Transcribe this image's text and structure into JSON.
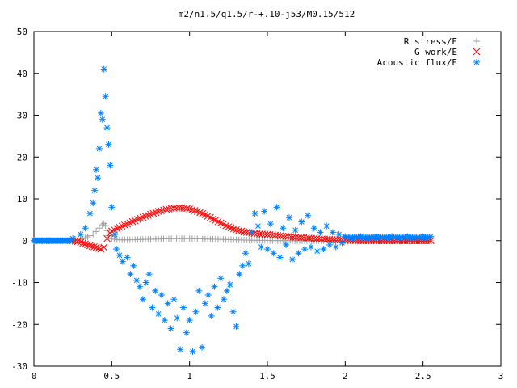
{
  "chart_data": {
    "type": "scatter",
    "title": "m2/n1.5/q1.5/r-+.10-j53/M0.15/512",
    "xlabel": "",
    "ylabel": "",
    "xlim": [
      0,
      3
    ],
    "ylim": [
      -30,
      50
    ],
    "x_ticks": [
      0,
      0.5,
      1,
      1.5,
      2,
      2.5,
      3
    ],
    "x_tick_labels": [
      "0",
      "0.5",
      "1",
      "1.5",
      "2",
      "2.5",
      "3"
    ],
    "y_ticks": [
      -30,
      -20,
      -10,
      0,
      10,
      20,
      30,
      40,
      50
    ],
    "y_tick_labels": [
      "-30",
      "-20",
      "-10",
      "0",
      "10",
      "20",
      "30",
      "40",
      "50"
    ],
    "grid": false,
    "legend_position": "top-right",
    "series": [
      {
        "name": "R stress/E",
        "marker": "plus",
        "color": "#a0a0a0",
        "points": [
          [
            0,
            0
          ],
          [
            0.1,
            0
          ],
          [
            0.2,
            0
          ],
          [
            0.25,
            0
          ],
          [
            0.28,
            0.05
          ],
          [
            0.3,
            0.2
          ],
          [
            0.33,
            0.6
          ],
          [
            0.36,
            1.2
          ],
          [
            0.38,
            1.6
          ],
          [
            0.4,
            2.2
          ],
          [
            0.42,
            3.0
          ],
          [
            0.44,
            3.8
          ],
          [
            0.45,
            4.1
          ],
          [
            0.46,
            3.6
          ],
          [
            0.47,
            2.4
          ],
          [
            0.48,
            1.2
          ],
          [
            0.5,
            0.4
          ],
          [
            0.55,
            0.2
          ],
          [
            0.6,
            0.2
          ],
          [
            0.7,
            0.3
          ],
          [
            0.8,
            0.4
          ],
          [
            0.9,
            0.5
          ],
          [
            1.0,
            0.5
          ],
          [
            1.1,
            0.4
          ],
          [
            1.2,
            0.3
          ],
          [
            1.3,
            0.2
          ],
          [
            1.4,
            0.1
          ],
          [
            1.5,
            0.05
          ],
          [
            1.6,
            0
          ],
          [
            1.8,
            0
          ],
          [
            2.0,
            0
          ],
          [
            2.2,
            0
          ],
          [
            2.4,
            0
          ],
          [
            2.55,
            0
          ]
        ]
      },
      {
        "name": "G work/E",
        "marker": "cross",
        "color": "#ff0000",
        "points": [
          [
            0.25,
            0
          ],
          [
            0.28,
            -0.2
          ],
          [
            0.3,
            -0.4
          ],
          [
            0.33,
            -0.8
          ],
          [
            0.36,
            -1.2
          ],
          [
            0.4,
            -1.6
          ],
          [
            0.43,
            -2.0
          ],
          [
            0.45,
            -1.6
          ],
          [
            0.47,
            0.5
          ],
          [
            0.49,
            1.8
          ],
          [
            0.5,
            2.3
          ],
          [
            0.55,
            3.2
          ],
          [
            0.6,
            4.0
          ],
          [
            0.65,
            4.8
          ],
          [
            0.7,
            5.6
          ],
          [
            0.75,
            6.3
          ],
          [
            0.8,
            7.0
          ],
          [
            0.85,
            7.5
          ],
          [
            0.9,
            7.8
          ],
          [
            0.95,
            7.9
          ],
          [
            1.0,
            7.6
          ],
          [
            1.05,
            7.0
          ],
          [
            1.1,
            6.2
          ],
          [
            1.15,
            5.2
          ],
          [
            1.2,
            4.2
          ],
          [
            1.25,
            3.3
          ],
          [
            1.3,
            2.6
          ],
          [
            1.35,
            2.1
          ],
          [
            1.4,
            1.8
          ],
          [
            1.45,
            1.6
          ],
          [
            1.5,
            1.5
          ],
          [
            1.55,
            1.3
          ],
          [
            1.6,
            1.1
          ],
          [
            1.7,
            0.8
          ],
          [
            1.8,
            0.5
          ],
          [
            1.9,
            0.3
          ],
          [
            2.0,
            0.1
          ],
          [
            2.1,
            0
          ],
          [
            2.2,
            0
          ],
          [
            2.3,
            0
          ],
          [
            2.4,
            0
          ],
          [
            2.55,
            0
          ]
        ]
      },
      {
        "name": "Acoustic flux/E",
        "marker": "star",
        "color": "#0080ff",
        "points": [
          [
            0,
            0
          ],
          [
            0.05,
            0
          ],
          [
            0.1,
            0
          ],
          [
            0.15,
            0
          ],
          [
            0.2,
            0
          ],
          [
            0.25,
            0.5
          ],
          [
            0.3,
            1.5
          ],
          [
            0.33,
            3.0
          ],
          [
            0.36,
            6.5
          ],
          [
            0.38,
            9.0
          ],
          [
            0.39,
            12.0
          ],
          [
            0.4,
            17.0
          ],
          [
            0.41,
            15.0
          ],
          [
            0.42,
            22.0
          ],
          [
            0.43,
            30.5
          ],
          [
            0.44,
            29.0
          ],
          [
            0.45,
            41.0
          ],
          [
            0.46,
            34.5
          ],
          [
            0.47,
            27.0
          ],
          [
            0.48,
            23.0
          ],
          [
            0.49,
            18.0
          ],
          [
            0.5,
            8.0
          ],
          [
            0.52,
            1.5
          ],
          [
            0.53,
            -2.0
          ],
          [
            0.55,
            -3.5
          ],
          [
            0.57,
            -5.0
          ],
          [
            0.6,
            -4.0
          ],
          [
            0.62,
            -8.0
          ],
          [
            0.64,
            -6.0
          ],
          [
            0.66,
            -9.5
          ],
          [
            0.68,
            -11.0
          ],
          [
            0.7,
            -14.0
          ],
          [
            0.72,
            -10.0
          ],
          [
            0.74,
            -8.0
          ],
          [
            0.76,
            -16.0
          ],
          [
            0.78,
            -12.0
          ],
          [
            0.8,
            -17.5
          ],
          [
            0.82,
            -13.0
          ],
          [
            0.84,
            -19.0
          ],
          [
            0.86,
            -15.0
          ],
          [
            0.88,
            -21.0
          ],
          [
            0.9,
            -14.0
          ],
          [
            0.92,
            -18.5
          ],
          [
            0.94,
            -26.0
          ],
          [
            0.96,
            -16.0
          ],
          [
            0.98,
            -22.0
          ],
          [
            1.0,
            -19.0
          ],
          [
            1.02,
            -26.5
          ],
          [
            1.04,
            -17.0
          ],
          [
            1.06,
            -12.0
          ],
          [
            1.08,
            -25.5
          ],
          [
            1.1,
            -15.0
          ],
          [
            1.12,
            -13.0
          ],
          [
            1.14,
            -18.0
          ],
          [
            1.16,
            -11.0
          ],
          [
            1.18,
            -16.0
          ],
          [
            1.2,
            -9.0
          ],
          [
            1.22,
            -14.0
          ],
          [
            1.24,
            -12.0
          ],
          [
            1.26,
            -10.5
          ],
          [
            1.28,
            -17.0
          ],
          [
            1.3,
            -20.5
          ],
          [
            1.32,
            -8.0
          ],
          [
            1.34,
            -6.0
          ],
          [
            1.36,
            -3.0
          ],
          [
            1.38,
            -5.5
          ],
          [
            1.4,
            2.0
          ],
          [
            1.42,
            6.5
          ],
          [
            1.44,
            3.5
          ],
          [
            1.46,
            -1.5
          ],
          [
            1.48,
            7.0
          ],
          [
            1.5,
            -2.0
          ],
          [
            1.52,
            4.0
          ],
          [
            1.54,
            -3.0
          ],
          [
            1.56,
            8.0
          ],
          [
            1.58,
            -4.0
          ],
          [
            1.6,
            3.0
          ],
          [
            1.62,
            -1.0
          ],
          [
            1.64,
            5.5
          ],
          [
            1.66,
            -4.5
          ],
          [
            1.68,
            2.5
          ],
          [
            1.7,
            -3.0
          ],
          [
            1.72,
            4.5
          ],
          [
            1.74,
            -2.0
          ],
          [
            1.76,
            6.0
          ],
          [
            1.78,
            -1.5
          ],
          [
            1.8,
            3.0
          ],
          [
            1.82,
            -2.5
          ],
          [
            1.84,
            2.0
          ],
          [
            1.86,
            -2.0
          ],
          [
            1.88,
            3.5
          ],
          [
            1.9,
            -1.0
          ],
          [
            1.92,
            2.0
          ],
          [
            1.94,
            -1.5
          ],
          [
            1.96,
            1.5
          ],
          [
            1.98,
            -0.5
          ],
          [
            2.0,
            1.0
          ],
          [
            2.05,
            0.5
          ],
          [
            2.1,
            1.0
          ],
          [
            2.15,
            0.5
          ],
          [
            2.2,
            1.0
          ],
          [
            2.3,
            1.0
          ],
          [
            2.4,
            1.0
          ],
          [
            2.5,
            1.0
          ],
          [
            2.55,
            1.0
          ]
        ]
      }
    ]
  }
}
